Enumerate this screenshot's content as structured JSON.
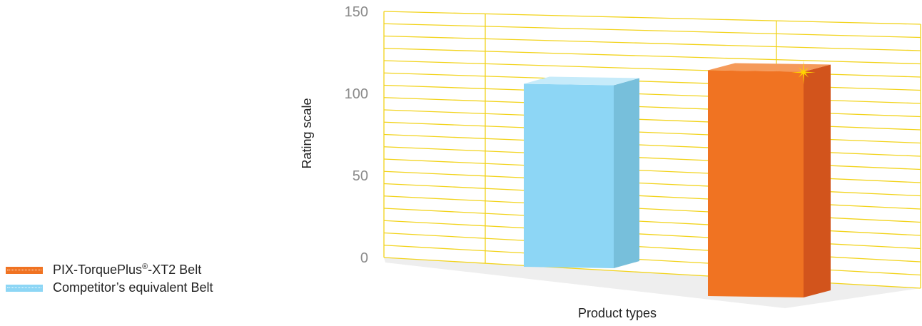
{
  "chart_data": {
    "type": "bar",
    "style": "3d",
    "categories": [
      "Competitor’s equivalent Belt",
      "PIX-TorquePlus®-XT2 Belt"
    ],
    "values": [
      121,
      133
    ],
    "xlabel": "Product types",
    "ylabel": "Rating scale",
    "ylim": [
      0,
      150
    ],
    "yticks": [
      0,
      50,
      100,
      150
    ],
    "grid": true,
    "legend_position": "bottom-left",
    "highlight": "star on PIX-TorquePlus®-XT2 Belt"
  },
  "legend": {
    "items": [
      {
        "name_main": "PIX-TorquePlus",
        "name_sup": "®",
        "name_rest": "-XT2 Belt",
        "color": "#f07322"
      },
      {
        "name_main": "Competitor’s equivalent Belt",
        "name_sup": "",
        "name_rest": "",
        "color": "#8dd6f5"
      }
    ]
  },
  "colors": {
    "grid": "#f2d31b",
    "floor": "#eeeeee",
    "competitor_front": "#8dd6f5",
    "competitor_top": "#c6ebfa",
    "competitor_side": "#77bfdb",
    "pix_front": "#f07322",
    "pix_top": "#f59a5a",
    "pix_side": "#d2541c",
    "star": "#ffd400"
  }
}
